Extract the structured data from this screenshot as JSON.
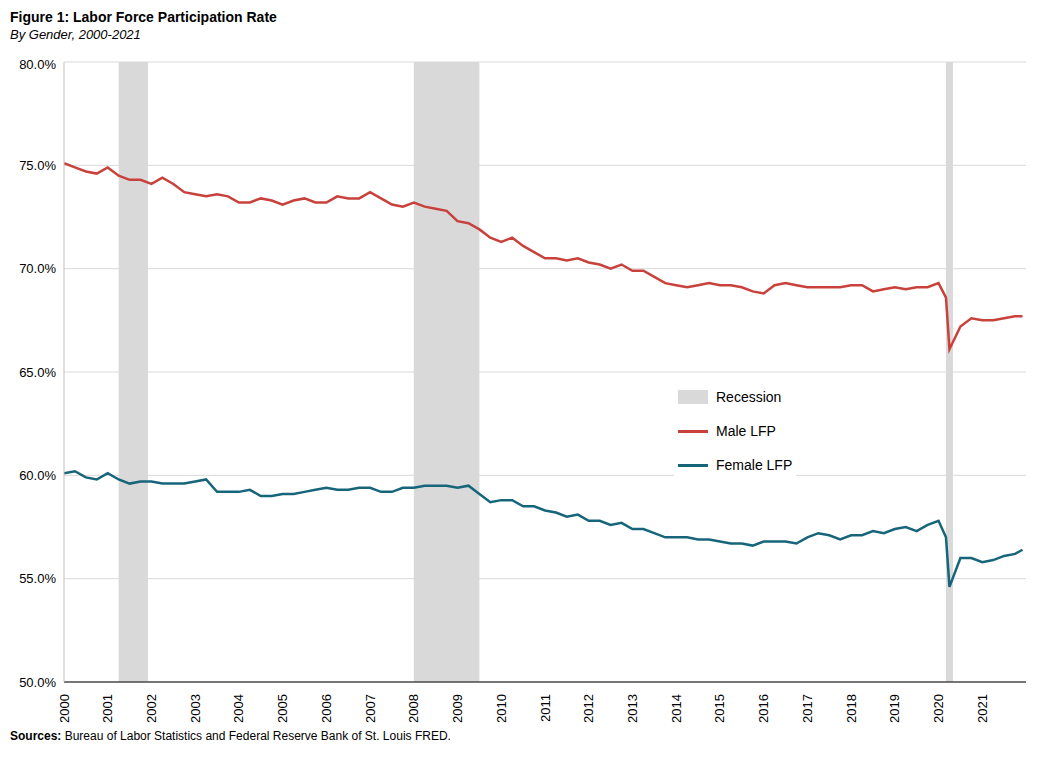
{
  "chart_data": {
    "type": "line",
    "title": "Figure 1: Labor Force Participation Rate",
    "subtitle": "By Gender, 2000-2021",
    "source": "Sources: Bureau of Labor Statistics and Federal Reserve Bank of St. Louis FRED.",
    "x": [
      2000,
      2000.25,
      2000.5,
      2000.75,
      2001,
      2001.25,
      2001.5,
      2001.75,
      2002,
      2002.25,
      2002.5,
      2002.75,
      2003,
      2003.25,
      2003.5,
      2003.75,
      2004,
      2004.25,
      2004.5,
      2004.75,
      2005,
      2005.25,
      2005.5,
      2005.75,
      2006,
      2006.25,
      2006.5,
      2006.75,
      2007,
      2007.25,
      2007.5,
      2007.75,
      2008,
      2008.25,
      2008.5,
      2008.75,
      2009,
      2009.25,
      2009.5,
      2009.75,
      2010,
      2010.25,
      2010.5,
      2010.75,
      2011,
      2011.25,
      2011.5,
      2011.75,
      2012,
      2012.25,
      2012.5,
      2012.75,
      2013,
      2013.25,
      2013.5,
      2013.75,
      2014,
      2014.25,
      2014.5,
      2014.75,
      2015,
      2015.25,
      2015.5,
      2015.75,
      2016,
      2016.25,
      2016.5,
      2016.75,
      2017,
      2017.25,
      2017.5,
      2017.75,
      2018,
      2018.25,
      2018.5,
      2018.75,
      2019,
      2019.25,
      2019.5,
      2019.75,
      2020,
      2020.17,
      2020.25,
      2020.5,
      2020.75,
      2021,
      2021.25,
      2021.5,
      2021.75,
      2021.92
    ],
    "series": [
      {
        "name": "Male LFP",
        "color": "#c8413b",
        "values": [
          75.1,
          74.9,
          74.7,
          74.6,
          74.9,
          74.5,
          74.3,
          74.3,
          74.1,
          74.4,
          74.1,
          73.7,
          73.6,
          73.5,
          73.6,
          73.5,
          73.2,
          73.2,
          73.4,
          73.3,
          73.1,
          73.3,
          73.4,
          73.2,
          73.2,
          73.5,
          73.4,
          73.4,
          73.7,
          73.4,
          73.1,
          73.0,
          73.2,
          73.0,
          72.9,
          72.8,
          72.3,
          72.2,
          71.9,
          71.5,
          71.3,
          71.5,
          71.1,
          70.8,
          70.5,
          70.5,
          70.4,
          70.5,
          70.3,
          70.2,
          70.0,
          70.2,
          69.9,
          69.9,
          69.6,
          69.3,
          69.2,
          69.1,
          69.2,
          69.3,
          69.2,
          69.2,
          69.1,
          68.9,
          68.8,
          69.2,
          69.3,
          69.2,
          69.1,
          69.1,
          69.1,
          69.1,
          69.2,
          69.2,
          68.9,
          69.0,
          69.1,
          69.0,
          69.1,
          69.1,
          69.3,
          68.6,
          66.1,
          67.2,
          67.6,
          67.5,
          67.5,
          67.6,
          67.7,
          67.7
        ]
      },
      {
        "name": "Female LFP",
        "color": "#17657a",
        "values": [
          60.1,
          60.2,
          59.9,
          59.8,
          60.1,
          59.8,
          59.6,
          59.7,
          59.7,
          59.6,
          59.6,
          59.6,
          59.7,
          59.8,
          59.2,
          59.2,
          59.2,
          59.3,
          59.0,
          59.0,
          59.1,
          59.1,
          59.2,
          59.3,
          59.4,
          59.3,
          59.3,
          59.4,
          59.4,
          59.2,
          59.2,
          59.4,
          59.4,
          59.5,
          59.5,
          59.5,
          59.4,
          59.5,
          59.1,
          58.7,
          58.8,
          58.8,
          58.5,
          58.5,
          58.3,
          58.2,
          58.0,
          58.1,
          57.8,
          57.8,
          57.6,
          57.7,
          57.4,
          57.4,
          57.2,
          57.0,
          57.0,
          57.0,
          56.9,
          56.9,
          56.8,
          56.7,
          56.7,
          56.6,
          56.8,
          56.8,
          56.8,
          56.7,
          57.0,
          57.2,
          57.1,
          56.9,
          57.1,
          57.1,
          57.3,
          57.2,
          57.4,
          57.5,
          57.3,
          57.6,
          57.8,
          57.0,
          54.6,
          56.0,
          56.0,
          55.8,
          55.9,
          56.1,
          56.2,
          56.4
        ]
      }
    ],
    "recession_label": "Recession",
    "recession_color": "#d9d9d9",
    "recessions": [
      {
        "start": 2001.25,
        "end": 2001.92
      },
      {
        "start": 2008.0,
        "end": 2009.5
      },
      {
        "start": 2020.17,
        "end": 2020.33
      }
    ],
    "xlim": [
      2000,
      2022
    ],
    "xticks": [
      2000,
      2001,
      2002,
      2003,
      2004,
      2005,
      2006,
      2007,
      2008,
      2009,
      2010,
      2011,
      2012,
      2013,
      2014,
      2015,
      2016,
      2017,
      2018,
      2019,
      2020,
      2021
    ],
    "ylim": [
      50,
      80
    ],
    "yticks": [
      {
        "value": 50,
        "label": "50.0%"
      },
      {
        "value": 55,
        "label": "55.0%"
      },
      {
        "value": 60,
        "label": "60.0%"
      },
      {
        "value": 65,
        "label": "65.0%"
      },
      {
        "value": 70,
        "label": "70.0%"
      },
      {
        "value": 75,
        "label": "75.0%"
      },
      {
        "value": 80,
        "label": "80.0%"
      }
    ],
    "grid": true,
    "legend": "right"
  }
}
